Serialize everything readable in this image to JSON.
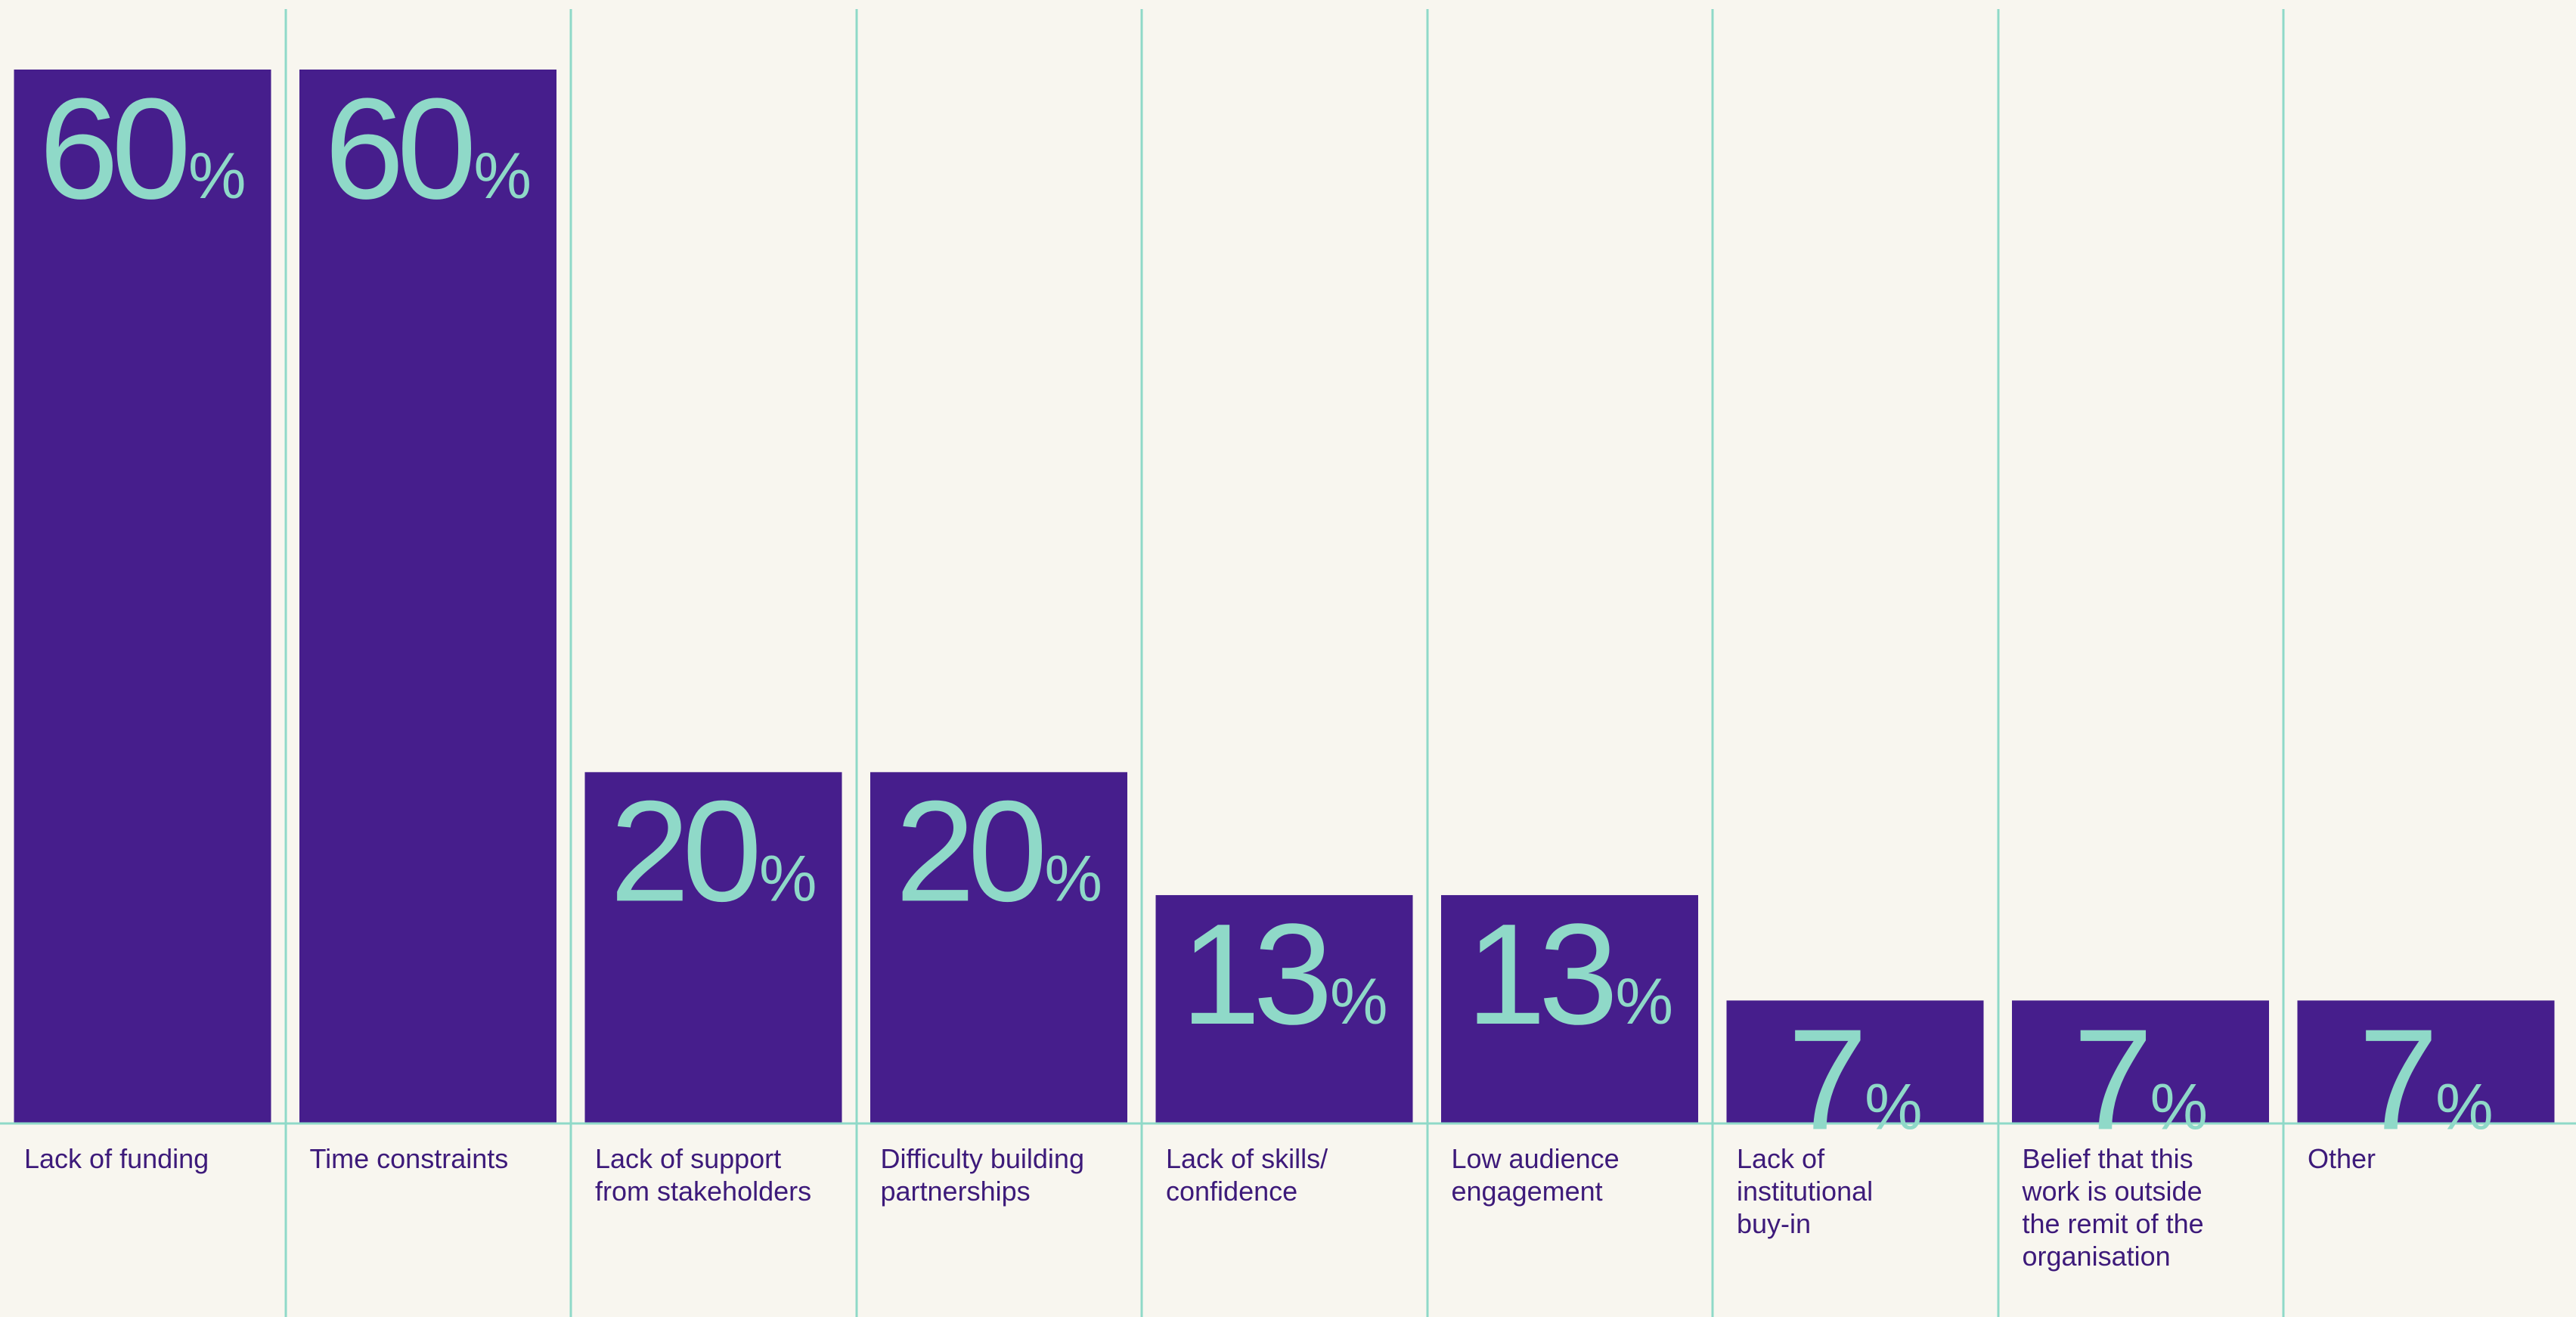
{
  "colors": {
    "background": "#f8f6ef",
    "bar": "#461e8c",
    "accent": "#8fd9c8",
    "label": "#3d1a7a"
  },
  "chart_data": {
    "type": "bar",
    "unit": "%",
    "ylim": [
      0,
      60
    ],
    "grid": true,
    "categories": [
      "Lack of funding",
      "Time constraints",
      "Lack of support from stakeholders",
      "Difficulty building partnerships",
      "Lack of skills/ confidence",
      "Low audience engagement",
      "Lack of institutional buy-in",
      "Belief that this work is outside the remit of the organisation",
      "Other"
    ],
    "category_lines": [
      [
        "Lack of funding"
      ],
      [
        "Time constraints"
      ],
      [
        "Lack of support",
        "from stakeholders"
      ],
      [
        "Difficulty building",
        "partnerships"
      ],
      [
        "Lack of skills/",
        "confidence"
      ],
      [
        "Low audience",
        "engagement"
      ],
      [
        "Lack of",
        "institutional",
        "buy-in"
      ],
      [
        "Belief that this",
        "work is outside",
        "the remit of the",
        "organisation"
      ],
      [
        "Other"
      ]
    ],
    "values": [
      60,
      60,
      20,
      20,
      13,
      13,
      7,
      7,
      7
    ]
  }
}
